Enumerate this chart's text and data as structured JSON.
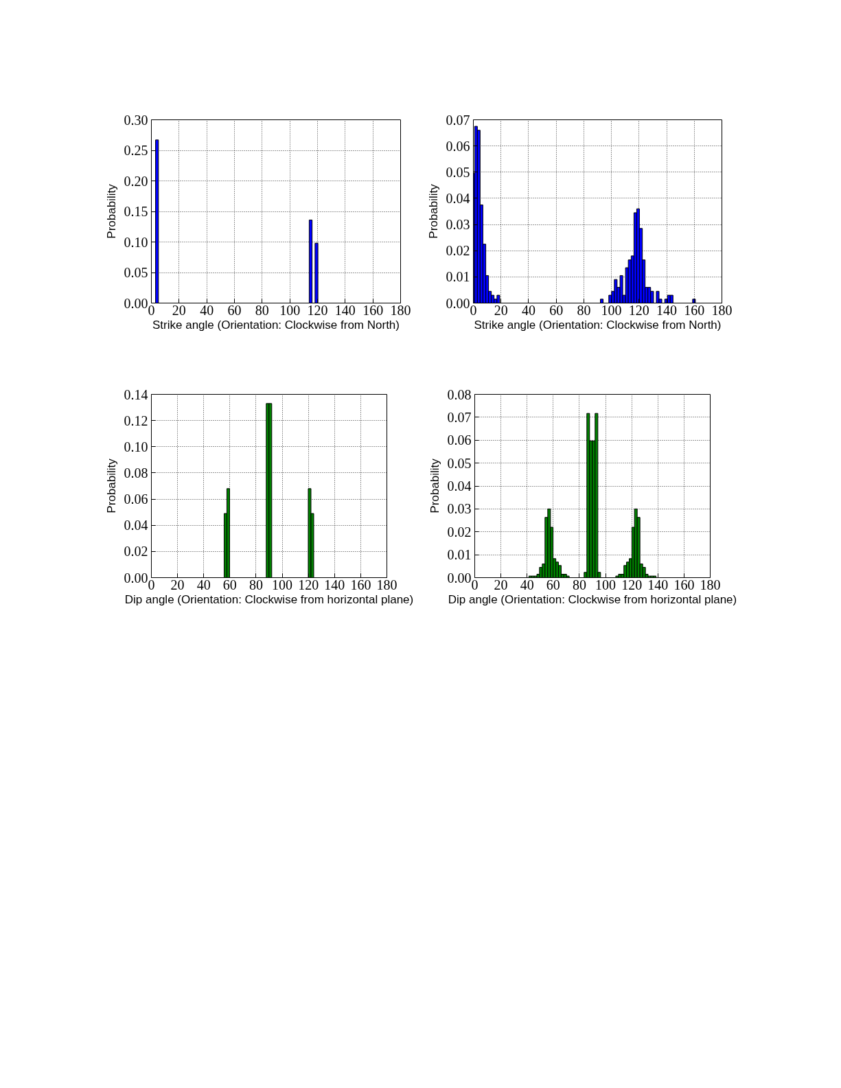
{
  "chart_data": [
    {
      "type": "histogram",
      "xlabel": "Strike angle (Orientation: Clockwise from North)",
      "ylabel": "Probability",
      "color": "#0000ff",
      "bins": [
        3.0,
        5.1,
        114.0,
        116.1,
        118.2,
        120.3
      ],
      "values": [
        0.267,
        0,
        0.136,
        0,
        0.098
      ],
      "xlim": [
        0,
        180
      ],
      "xticks": [
        0,
        20,
        40,
        60,
        80,
        100,
        120,
        140,
        160,
        180
      ],
      "ylim": [
        0,
        0.3
      ],
      "yticks": [
        {
          "value": 0,
          "label": "0.00"
        },
        {
          "value": 0.05,
          "label": "0.05"
        },
        {
          "value": 0.1,
          "label": "0.10"
        },
        {
          "value": 0.15,
          "label": "0.15"
        },
        {
          "value": 0.2,
          "label": "0.20"
        },
        {
          "value": 0.25,
          "label": "0.25"
        },
        {
          "value": 0.3,
          "label": "0.30"
        }
      ],
      "grid": true
    },
    {
      "type": "histogram",
      "xlabel": "Strike angle (Orientation: Clockwise from North)",
      "ylabel": "Probability",
      "color": "#0000ff",
      "bins": [
        0,
        0.9,
        2.9,
        4.9,
        6.9,
        9.0,
        11.0,
        13.0,
        15.0,
        17.1,
        19.1,
        92.0,
        94.0,
        98.1,
        100.1,
        102.1,
        104.1,
        106.2,
        108.2,
        110.2,
        112.2,
        114.3,
        116.3,
        118.3,
        120.3,
        122.4,
        124.4,
        126.4,
        128.4,
        130.5,
        132.5,
        134.5,
        136.5,
        138.6,
        140.6,
        142.6,
        144.6,
        158.8,
        160.8
      ],
      "values": [
        0.0495,
        0.0675,
        0.066,
        0.0375,
        0.0225,
        0.0105,
        0.0045,
        0.003,
        0.0015,
        0.003,
        0,
        0.0015,
        0,
        0.003,
        0.0045,
        0.009,
        0.006,
        0.0105,
        0.003,
        0.0135,
        0.0165,
        0.018,
        0.0345,
        0.036,
        0.0285,
        0.0165,
        0.006,
        0.006,
        0.0045,
        0,
        0.0045,
        0.0015,
        0,
        0.0015,
        0.003,
        0.003,
        0,
        0.0015
      ],
      "xlim": [
        0,
        180
      ],
      "xticks": [
        0,
        20,
        40,
        60,
        80,
        100,
        120,
        140,
        160,
        180
      ],
      "ylim": [
        0,
        0.07
      ],
      "yticks": [
        {
          "value": 0,
          "label": "0.00"
        },
        {
          "value": 0.01,
          "label": "0.01"
        },
        {
          "value": 0.02,
          "label": "0.02"
        },
        {
          "value": 0.03,
          "label": "0.03"
        },
        {
          "value": 0.04,
          "label": "0.04"
        },
        {
          "value": 0.05,
          "label": "0.05"
        },
        {
          "value": 0.06,
          "label": "0.06"
        },
        {
          "value": 0.07,
          "label": "0.07"
        }
      ],
      "grid": true
    },
    {
      "type": "histogram",
      "xlabel": "Dip angle (Orientation: Clockwise from horizontal plane)",
      "ylabel": "Probability",
      "color": "#008000",
      "bins": [
        55.6,
        57.7,
        59.8,
        87.8,
        89.9,
        92.0,
        119.9,
        122.0,
        124.1
      ],
      "values": [
        0.049,
        0.068,
        0,
        0.133,
        0.133,
        0,
        0.068,
        0.049
      ],
      "xlim": [
        0,
        180
      ],
      "xticks": [
        0,
        20,
        40,
        60,
        80,
        100,
        120,
        140,
        160,
        180
      ],
      "ylim": [
        0,
        0.14
      ],
      "yticks": [
        {
          "value": 0,
          "label": "0.00"
        },
        {
          "value": 0.02,
          "label": "0.02"
        },
        {
          "value": 0.04,
          "label": "0.04"
        },
        {
          "value": 0.06,
          "label": "0.06"
        },
        {
          "value": 0.08,
          "label": "0.08"
        },
        {
          "value": 0.1,
          "label": "0.10"
        },
        {
          "value": 0.12,
          "label": "0.12"
        },
        {
          "value": 0.14,
          "label": "0.14"
        }
      ],
      "grid": true
    },
    {
      "type": "histogram",
      "xlabel": "Dip angle (Orientation: Clockwise from horizontal plane)",
      "ylabel": "Probability",
      "color": "#008000",
      "bins": [
        41.4,
        43.4,
        45.5,
        47.5,
        49.5,
        51.6,
        53.7,
        55.8,
        57.9,
        59.9,
        62.0,
        64.0,
        66.1,
        68.1,
        70.2,
        72.2,
        83.6,
        85.7,
        87.8,
        89.9,
        92.0,
        94.1,
        96.2,
        107.8,
        109.9,
        111.9,
        114.0,
        116.0,
        118.1,
        120.1,
        122.1,
        124.2,
        126.3,
        128.4,
        130.5,
        132.5,
        134.5,
        136.6,
        138.6
      ],
      "values": [
        0.0007,
        0.0007,
        0.0007,
        0.0015,
        0.0045,
        0.006,
        0.0263,
        0.03,
        0.022,
        0.0083,
        0.0068,
        0.0053,
        0.0015,
        0.0015,
        0.0007,
        0,
        0.0023,
        0.0717,
        0.0597,
        0.0597,
        0.0717,
        0.0023,
        0,
        0.0007,
        0.0015,
        0.0015,
        0.0053,
        0.0068,
        0.0083,
        0.022,
        0.03,
        0.0263,
        0.006,
        0.0045,
        0.0015,
        0.0007,
        0.0007,
        0.0007
      ],
      "xlim": [
        0,
        180
      ],
      "xticks": [
        0,
        20,
        40,
        60,
        80,
        100,
        120,
        140,
        160,
        180
      ],
      "ylim": [
        0,
        0.08
      ],
      "yticks": [
        {
          "value": 0,
          "label": "0.00"
        },
        {
          "value": 0.01,
          "label": "0.01"
        },
        {
          "value": 0.02,
          "label": "0.02"
        },
        {
          "value": 0.03,
          "label": "0.03"
        },
        {
          "value": 0.04,
          "label": "0.04"
        },
        {
          "value": 0.05,
          "label": "0.05"
        },
        {
          "value": 0.06,
          "label": "0.06"
        },
        {
          "value": 0.07,
          "label": "0.07"
        },
        {
          "value": 0.08,
          "label": "0.08"
        }
      ],
      "grid": true
    }
  ]
}
